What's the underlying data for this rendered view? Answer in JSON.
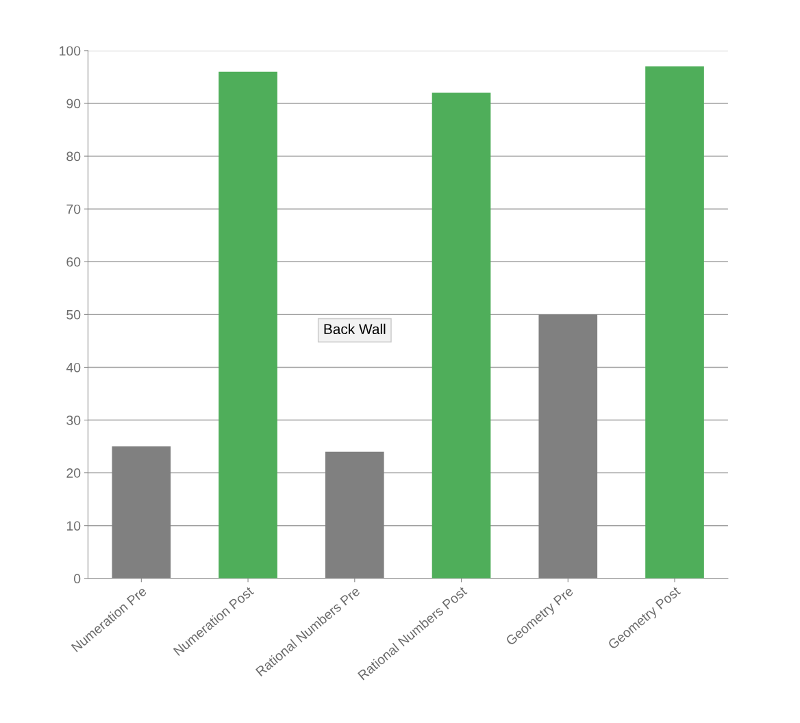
{
  "chart_data": {
    "type": "bar",
    "categories": [
      "Numeration Pre",
      "Numeration Post",
      "Rational Numbers Pre",
      "Rational Numbers Post",
      "Geometry Pre",
      "Geometry Post"
    ],
    "values": [
      25,
      96,
      24,
      92,
      50,
      97
    ],
    "colors": [
      "#808080",
      "#4fae5a",
      "#808080",
      "#4fae5a",
      "#808080",
      "#4fae5a"
    ],
    "ylim": [
      0,
      100
    ],
    "yticks": [
      0,
      10,
      20,
      30,
      40,
      50,
      60,
      70,
      80,
      90,
      100
    ],
    "grid": "y",
    "annotations": [
      "Back Wall"
    ]
  }
}
